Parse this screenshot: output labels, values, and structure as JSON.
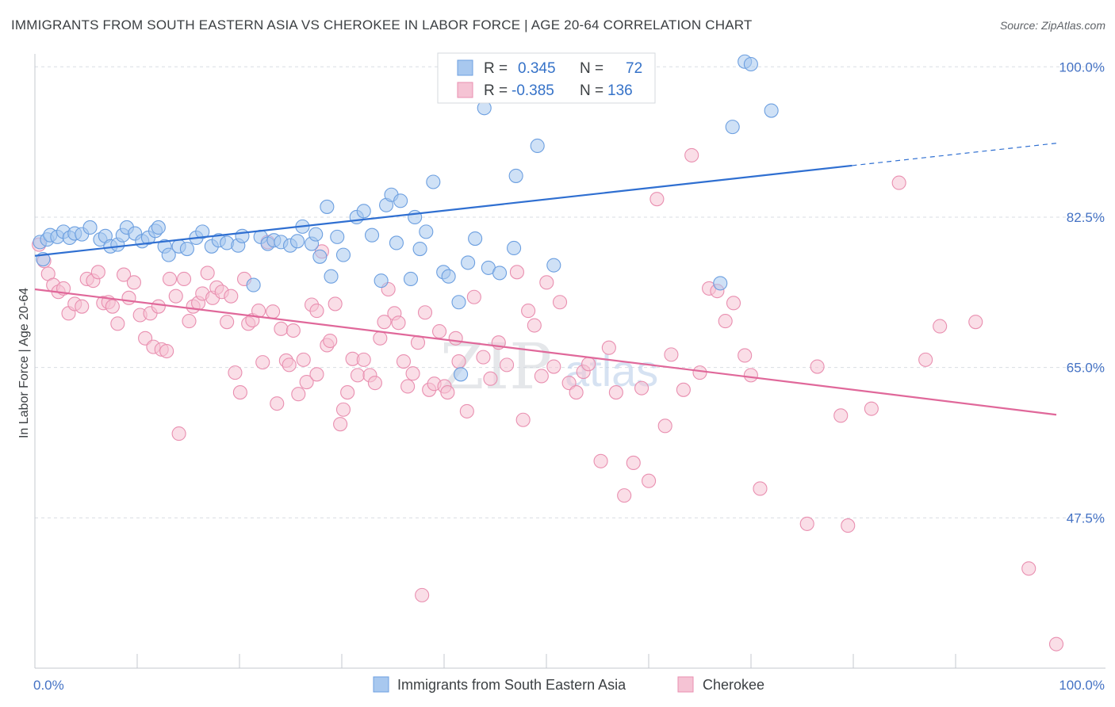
{
  "title": "IMMIGRANTS FROM SOUTH EASTERN ASIA VS CHEROKEE IN LABOR FORCE | AGE 20-64 CORRELATION CHART",
  "source": "Source: ZipAtlas.com",
  "chart_data": {
    "type": "scatter",
    "ylabel": "In Labor Force | Age 20-64",
    "xlim": [
      0,
      100
    ],
    "ylim": [
      30,
      101.5
    ],
    "x_tick_labels": [
      "0.0%",
      "100.0%"
    ],
    "y_ticks": [
      {
        "value": 100,
        "label": "100.0%"
      },
      {
        "value": 82.5,
        "label": "82.5%"
      },
      {
        "value": 65,
        "label": "65.0%"
      },
      {
        "value": 47.5,
        "label": "47.5%"
      }
    ],
    "grid": true,
    "watermark": {
      "part1": "ZIP",
      "part2": "atlas"
    },
    "legend": {
      "position": "top-center",
      "entries": [
        {
          "series": "blue",
          "r_label": "R =",
          "r_value": "0.345",
          "n_label": "N =",
          "n_value": "72"
        },
        {
          "series": "pink",
          "r_label": "R =",
          "r_value": "-0.385",
          "n_label": "N =",
          "n_value": "136"
        }
      ]
    },
    "colors": {
      "blue_fill": "#a8c8ef",
      "blue_stroke": "#6c9fe0",
      "blue_line": "#2f6fd1",
      "pink_fill": "#f5c3d4",
      "pink_stroke": "#e98fb0",
      "pink_line": "#e0689a",
      "tick_label": "#4472c4",
      "grid": "#d9dde3"
    },
    "series": [
      {
        "name": "Immigrants from South Eastern Asia",
        "color": "blue",
        "trend": {
          "x0": 0,
          "y0": 78.0,
          "x1": 80,
          "y1": 88.5,
          "dashed_to": 100,
          "dashed_y": 91.1
        },
        "points": [
          [
            0.5,
            79.6
          ],
          [
            0.8,
            77.6
          ],
          [
            1.2,
            79.9
          ],
          [
            1.5,
            80.4
          ],
          [
            2.2,
            80.2
          ],
          [
            2.8,
            80.8
          ],
          [
            3.4,
            80.1
          ],
          [
            3.9,
            80.6
          ],
          [
            4.6,
            80.5
          ],
          [
            5.4,
            81.3
          ],
          [
            6.4,
            79.9
          ],
          [
            6.9,
            80.3
          ],
          [
            7.4,
            79.1
          ],
          [
            8.1,
            79.3
          ],
          [
            8.6,
            80.4
          ],
          [
            9.0,
            81.3
          ],
          [
            9.8,
            80.6
          ],
          [
            10.5,
            79.7
          ],
          [
            11.1,
            80.1
          ],
          [
            11.8,
            80.9
          ],
          [
            12.1,
            81.3
          ],
          [
            12.7,
            79.1
          ],
          [
            13.1,
            78.1
          ],
          [
            14.1,
            79.1
          ],
          [
            14.9,
            78.8
          ],
          [
            15.8,
            80.1
          ],
          [
            16.4,
            80.8
          ],
          [
            17.3,
            79.1
          ],
          [
            18.0,
            79.8
          ],
          [
            18.8,
            79.5
          ],
          [
            19.9,
            79.2
          ],
          [
            20.3,
            80.3
          ],
          [
            21.4,
            74.6
          ],
          [
            22.1,
            80.2
          ],
          [
            22.8,
            79.4
          ],
          [
            23.4,
            79.8
          ],
          [
            24.1,
            79.6
          ],
          [
            25.0,
            79.2
          ],
          [
            25.7,
            79.7
          ],
          [
            26.2,
            81.4
          ],
          [
            27.1,
            79.4
          ],
          [
            27.5,
            80.5
          ],
          [
            27.9,
            77.9
          ],
          [
            28.6,
            83.7
          ],
          [
            29.0,
            75.6
          ],
          [
            29.6,
            80.2
          ],
          [
            30.2,
            78.1
          ],
          [
            31.5,
            82.5
          ],
          [
            32.2,
            83.2
          ],
          [
            33.0,
            80.4
          ],
          [
            33.9,
            75.1
          ],
          [
            34.4,
            83.9
          ],
          [
            34.9,
            85.1
          ],
          [
            35.4,
            79.5
          ],
          [
            35.8,
            84.4
          ],
          [
            36.8,
            75.3
          ],
          [
            37.2,
            82.5
          ],
          [
            37.7,
            78.8
          ],
          [
            38.3,
            80.8
          ],
          [
            39.0,
            86.6
          ],
          [
            40.0,
            76.1
          ],
          [
            40.5,
            75.6
          ],
          [
            41.5,
            72.6
          ],
          [
            41.7,
            64.2
          ],
          [
            42.4,
            77.2
          ],
          [
            43.1,
            80.0
          ],
          [
            44.0,
            95.2
          ],
          [
            44.4,
            76.6
          ],
          [
            45.5,
            76.0
          ],
          [
            46.9,
            78.9
          ],
          [
            47.1,
            87.3
          ],
          [
            49.2,
            90.8
          ],
          [
            50.8,
            76.9
          ],
          [
            68.3,
            93.0
          ],
          [
            69.5,
            100.6
          ],
          [
            70.1,
            100.3
          ],
          [
            72.1,
            94.9
          ],
          [
            67.1,
            74.8
          ]
        ]
      },
      {
        "name": "Cherokee",
        "color": "pink",
        "trend": {
          "x0": 0,
          "y0": 74.1,
          "x1": 100,
          "y1": 59.5
        },
        "points": [
          [
            0.4,
            79.3
          ],
          [
            0.9,
            77.4
          ],
          [
            1.3,
            75.9
          ],
          [
            1.8,
            74.6
          ],
          [
            2.3,
            73.8
          ],
          [
            2.8,
            74.2
          ],
          [
            3.3,
            71.3
          ],
          [
            3.9,
            72.4
          ],
          [
            4.6,
            72.1
          ],
          [
            5.1,
            75.3
          ],
          [
            5.7,
            75.1
          ],
          [
            6.2,
            76.1
          ],
          [
            6.7,
            72.5
          ],
          [
            7.2,
            72.6
          ],
          [
            7.6,
            72.1
          ],
          [
            8.1,
            70.1
          ],
          [
            8.7,
            75.8
          ],
          [
            9.2,
            73.1
          ],
          [
            9.7,
            74.9
          ],
          [
            10.3,
            71.1
          ],
          [
            10.8,
            68.4
          ],
          [
            11.3,
            71.3
          ],
          [
            11.6,
            67.4
          ],
          [
            12.1,
            72.1
          ],
          [
            12.4,
            67.1
          ],
          [
            12.9,
            66.9
          ],
          [
            13.2,
            75.3
          ],
          [
            13.8,
            73.3
          ],
          [
            14.1,
            57.3
          ],
          [
            14.6,
            75.3
          ],
          [
            15.1,
            70.4
          ],
          [
            15.5,
            72.1
          ],
          [
            16.0,
            72.5
          ],
          [
            16.4,
            73.6
          ],
          [
            16.9,
            76.0
          ],
          [
            17.4,
            73.1
          ],
          [
            17.8,
            74.3
          ],
          [
            18.3,
            73.8
          ],
          [
            18.8,
            70.3
          ],
          [
            19.2,
            73.3
          ],
          [
            19.6,
            64.4
          ],
          [
            20.1,
            62.1
          ],
          [
            20.5,
            75.3
          ],
          [
            20.9,
            70.1
          ],
          [
            21.3,
            70.5
          ],
          [
            21.9,
            71.6
          ],
          [
            22.3,
            65.6
          ],
          [
            22.8,
            79.6
          ],
          [
            23.3,
            71.5
          ],
          [
            23.7,
            60.8
          ],
          [
            24.1,
            69.5
          ],
          [
            24.6,
            65.8
          ],
          [
            24.9,
            65.3
          ],
          [
            25.3,
            69.3
          ],
          [
            25.8,
            61.9
          ],
          [
            26.3,
            65.9
          ],
          [
            26.6,
            63.3
          ],
          [
            27.1,
            72.3
          ],
          [
            27.6,
            71.6
          ],
          [
            28.1,
            78.5
          ],
          [
            28.6,
            67.6
          ],
          [
            28.9,
            68.1
          ],
          [
            29.4,
            72.4
          ],
          [
            29.9,
            58.4
          ],
          [
            30.2,
            60.1
          ],
          [
            30.6,
            62.1
          ],
          [
            31.1,
            66.0
          ],
          [
            31.6,
            64.1
          ],
          [
            32.2,
            65.9
          ],
          [
            32.8,
            64.1
          ],
          [
            33.3,
            63.2
          ],
          [
            33.8,
            68.4
          ],
          [
            34.2,
            70.3
          ],
          [
            34.6,
            74.1
          ],
          [
            35.2,
            71.3
          ],
          [
            35.6,
            70.2
          ],
          [
            36.1,
            65.7
          ],
          [
            36.5,
            62.8
          ],
          [
            37.0,
            64.3
          ],
          [
            37.5,
            67.9
          ],
          [
            38.2,
            71.4
          ],
          [
            38.6,
            62.4
          ],
          [
            39.1,
            63.1
          ],
          [
            39.6,
            69.2
          ],
          [
            40.1,
            62.8
          ],
          [
            40.4,
            62.1
          ],
          [
            41.2,
            68.4
          ],
          [
            41.5,
            65.7
          ],
          [
            42.3,
            59.9
          ],
          [
            43.0,
            73.2
          ],
          [
            43.9,
            66.2
          ],
          [
            44.6,
            63.7
          ],
          [
            45.4,
            67.9
          ],
          [
            46.2,
            65.3
          ],
          [
            47.2,
            76.1
          ],
          [
            47.8,
            58.9
          ],
          [
            48.3,
            71.6
          ],
          [
            48.9,
            69.9
          ],
          [
            49.6,
            64.0
          ],
          [
            50.1,
            74.9
          ],
          [
            50.8,
            65.1
          ],
          [
            51.4,
            72.6
          ],
          [
            52.3,
            63.2
          ],
          [
            53.0,
            62.1
          ],
          [
            53.7,
            64.5
          ],
          [
            54.2,
            65.4
          ],
          [
            55.4,
            54.1
          ],
          [
            56.2,
            67.3
          ],
          [
            56.9,
            62.1
          ],
          [
            57.7,
            50.1
          ],
          [
            58.6,
            53.9
          ],
          [
            59.4,
            62.6
          ],
          [
            60.1,
            51.8
          ],
          [
            60.9,
            84.6
          ],
          [
            61.7,
            58.2
          ],
          [
            62.3,
            66.5
          ],
          [
            63.5,
            62.4
          ],
          [
            64.3,
            89.7
          ],
          [
            65.1,
            64.4
          ],
          [
            66.0,
            74.2
          ],
          [
            66.8,
            73.9
          ],
          [
            67.6,
            70.4
          ],
          [
            68.4,
            72.5
          ],
          [
            69.5,
            66.4
          ],
          [
            70.1,
            64.1
          ],
          [
            71.0,
            50.9
          ],
          [
            75.6,
            46.8
          ],
          [
            76.6,
            65.1
          ],
          [
            78.9,
            59.4
          ],
          [
            79.6,
            46.6
          ],
          [
            81.9,
            60.2
          ],
          [
            84.6,
            86.5
          ],
          [
            87.2,
            65.9
          ],
          [
            88.6,
            69.8
          ],
          [
            92.1,
            70.3
          ],
          [
            97.3,
            41.6
          ],
          [
            100.0,
            32.8
          ],
          [
            37.9,
            38.5
          ],
          [
            27.6,
            64.2
          ]
        ]
      }
    ]
  },
  "bottom_legend": [
    {
      "label": "Immigrants from South Eastern Asia",
      "color": "blue"
    },
    {
      "label": "Cherokee",
      "color": "pink"
    }
  ]
}
